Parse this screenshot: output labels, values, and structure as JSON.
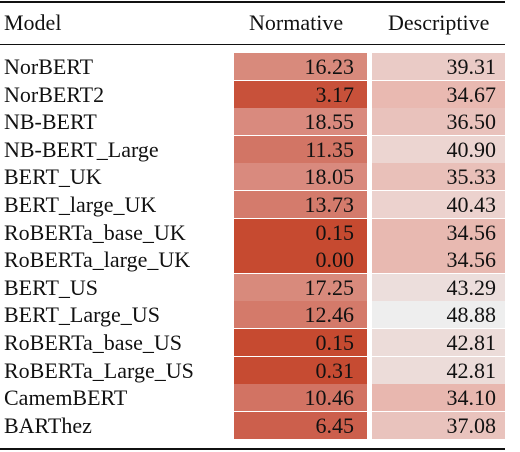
{
  "headers": {
    "model": "Model",
    "normative": "Normative",
    "descriptive": "Descriptive"
  },
  "rows": [
    {
      "model": "NorBERT",
      "normative": "16.23",
      "descriptive": "39.31",
      "norm_color": "#d88a7c",
      "desc_color": "#eacbc6"
    },
    {
      "model": "NorBERT2",
      "normative": "3.17",
      "descriptive": "34.67",
      "norm_color": "#c8513a",
      "desc_color": "#e9b9b1"
    },
    {
      "model": "NB-BERT",
      "normative": "18.55",
      "descriptive": "36.50",
      "norm_color": "#d98a7e",
      "desc_color": "#e9c2bc"
    },
    {
      "model": "NB-BERT_Large",
      "normative": "11.35",
      "descriptive": "40.90",
      "norm_color": "#d27565",
      "desc_color": "#ecd5d1"
    },
    {
      "model": "BERT_UK",
      "normative": "18.05",
      "descriptive": "35.33",
      "norm_color": "#d98a7e",
      "desc_color": "#e9c0b9"
    },
    {
      "model": "BERT_large_UK",
      "normative": "13.73",
      "descriptive": "40.43",
      "norm_color": "#d47b6c",
      "desc_color": "#ecd2ce"
    },
    {
      "model": "RoBERTa_base_UK",
      "normative": "0.15",
      "descriptive": "34.56",
      "norm_color": "#c64a30",
      "desc_color": "#e8b9b1"
    },
    {
      "model": "RoBERTa_large_UK",
      "normative": "0.00",
      "descriptive": "34.56",
      "norm_color": "#c64a30",
      "desc_color": "#e8b9b1"
    },
    {
      "model": "BERT_US",
      "normative": "17.25",
      "descriptive": "43.29",
      "norm_color": "#d88a7c",
      "desc_color": "#ecdedc"
    },
    {
      "model": "BERT_Large_US",
      "normative": "12.46",
      "descriptive": "48.88",
      "norm_color": "#d47a6a",
      "desc_color": "#eeeeee"
    },
    {
      "model": "RoBERTa_base_US",
      "normative": "0.15",
      "descriptive": "42.81",
      "norm_color": "#c64a30",
      "desc_color": "#ecdcd9"
    },
    {
      "model": "RoBERTa_Large_US",
      "normative": "0.31",
      "descriptive": "42.81",
      "norm_color": "#c64b32",
      "desc_color": "#ecdcd9"
    },
    {
      "model": "CamemBERT",
      "normative": "10.46",
      "descriptive": "34.10",
      "norm_color": "#d27363",
      "desc_color": "#e8b7af"
    },
    {
      "model": "BARThez",
      "normative": "6.45",
      "descriptive": "37.08",
      "norm_color": "#cc5f4c",
      "desc_color": "#e9c3bd"
    }
  ]
}
